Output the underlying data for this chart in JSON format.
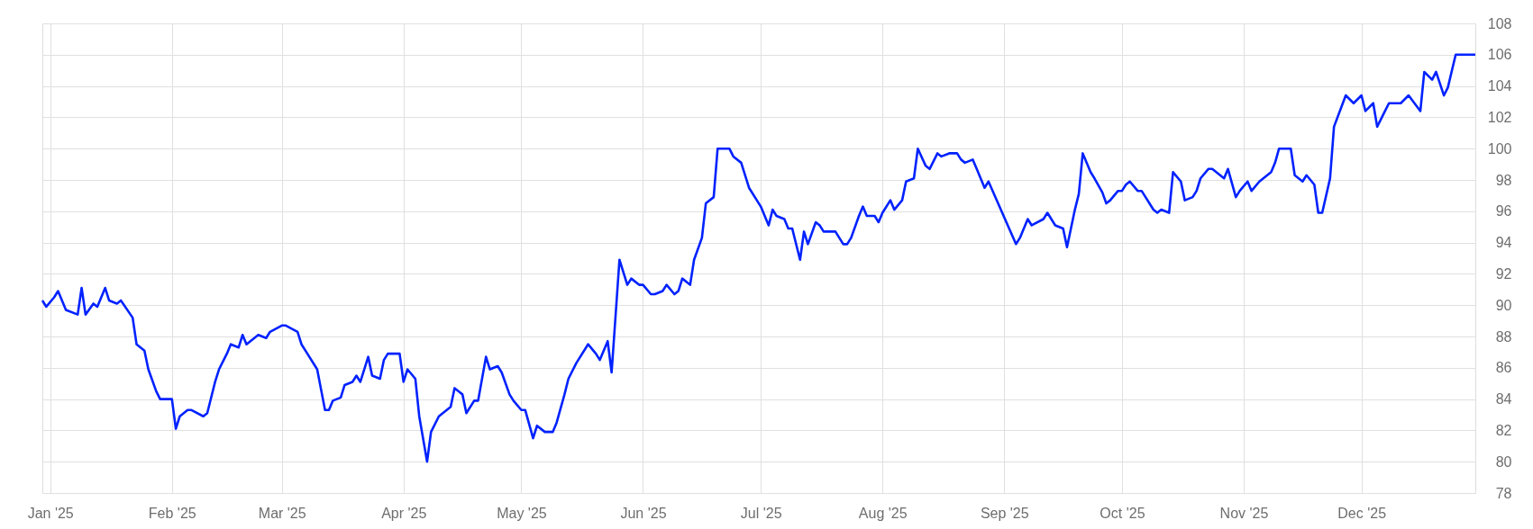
{
  "chart_data": {
    "type": "line",
    "color": "#0022ff",
    "x": [
      "2024-12-30",
      "2024-12-31",
      "2025-01-02",
      "2025-01-03",
      "2025-01-05",
      "2025-01-08",
      "2025-01-09",
      "2025-01-10",
      "2025-01-12",
      "2025-01-13",
      "2025-01-15",
      "2025-01-16",
      "2025-01-18",
      "2025-01-19",
      "2025-01-22",
      "2025-01-23",
      "2025-01-25",
      "2025-01-26",
      "2025-01-28",
      "2025-01-29",
      "2025-02-01",
      "2025-02-02",
      "2025-02-03",
      "2025-02-05",
      "2025-02-06",
      "2025-02-09",
      "2025-02-10",
      "2025-02-12",
      "2025-02-13",
      "2025-02-15",
      "2025-02-16",
      "2025-02-18",
      "2025-02-19",
      "2025-02-20",
      "2025-02-22",
      "2025-02-23",
      "2025-02-25",
      "2025-02-26",
      "2025-03-01",
      "2025-03-02",
      "2025-03-05",
      "2025-03-06",
      "2025-03-07",
      "2025-03-10",
      "2025-03-12",
      "2025-03-13",
      "2025-03-14",
      "2025-03-16",
      "2025-03-17",
      "2025-03-19",
      "2025-03-20",
      "2025-03-21",
      "2025-03-23",
      "2025-03-24",
      "2025-03-26",
      "2025-03-27",
      "2025-03-28",
      "2025-03-31",
      "2025-04-01",
      "2025-04-02",
      "2025-04-04",
      "2025-04-05",
      "2025-04-07",
      "2025-04-08",
      "2025-04-10",
      "2025-04-11",
      "2025-04-13",
      "2025-04-14",
      "2025-04-16",
      "2025-04-17",
      "2025-04-19",
      "2025-04-20",
      "2025-04-22",
      "2025-04-23",
      "2025-04-25",
      "2025-04-26",
      "2025-04-28",
      "2025-04-29",
      "2025-05-01",
      "2025-05-02",
      "2025-05-04",
      "2025-05-05",
      "2025-05-07",
      "2025-05-09",
      "2025-05-10",
      "2025-05-12",
      "2025-05-13",
      "2025-05-15",
      "2025-05-18",
      "2025-05-20",
      "2025-05-21",
      "2025-05-23",
      "2025-05-24",
      "2025-05-26",
      "2025-05-28",
      "2025-05-29",
      "2025-05-31",
      "2025-06-01",
      "2025-06-03",
      "2025-06-04",
      "2025-06-06",
      "2025-06-07",
      "2025-06-09",
      "2025-06-10",
      "2025-06-11",
      "2025-06-13",
      "2025-06-14",
      "2025-06-16",
      "2025-06-17",
      "2025-06-19",
      "2025-06-20",
      "2025-06-23",
      "2025-06-24",
      "2025-06-26",
      "2025-06-28",
      "2025-07-01",
      "2025-07-03",
      "2025-07-04",
      "2025-07-05",
      "2025-07-07",
      "2025-07-08",
      "2025-07-09",
      "2025-07-11",
      "2025-07-12",
      "2025-07-13",
      "2025-07-15",
      "2025-07-16",
      "2025-07-17",
      "2025-07-20",
      "2025-07-22",
      "2025-07-23",
      "2025-07-24",
      "2025-07-26",
      "2025-07-27",
      "2025-07-28",
      "2025-07-30",
      "2025-07-31",
      "2025-08-01",
      "2025-08-03",
      "2025-08-04",
      "2025-08-06",
      "2025-08-07",
      "2025-08-09",
      "2025-08-10",
      "2025-08-12",
      "2025-08-13",
      "2025-08-15",
      "2025-08-16",
      "2025-08-18",
      "2025-08-20",
      "2025-08-21",
      "2025-08-22",
      "2025-08-24",
      "2025-08-25",
      "2025-08-27",
      "2025-08-28",
      "2025-09-04",
      "2025-09-05",
      "2025-09-07",
      "2025-09-08",
      "2025-09-11",
      "2025-09-12",
      "2025-09-14",
      "2025-09-16",
      "2025-09-17",
      "2025-09-19",
      "2025-09-20",
      "2025-09-21",
      "2025-09-23",
      "2025-09-24",
      "2025-09-26",
      "2025-09-27",
      "2025-09-28",
      "2025-09-30",
      "2025-10-01",
      "2025-10-02",
      "2025-10-03",
      "2025-10-05",
      "2025-10-06",
      "2025-10-09",
      "2025-10-10",
      "2025-10-11",
      "2025-10-13",
      "2025-10-14",
      "2025-10-16",
      "2025-10-17",
      "2025-10-19",
      "2025-10-20",
      "2025-10-21",
      "2025-10-23",
      "2025-10-24",
      "2025-10-26",
      "2025-10-27",
      "2025-10-28",
      "2025-10-30",
      "2025-10-31",
      "2025-11-02",
      "2025-11-03",
      "2025-11-05",
      "2025-11-08",
      "2025-11-09",
      "2025-11-10",
      "2025-11-13",
      "2025-11-14",
      "2025-11-16",
      "2025-11-17",
      "2025-11-19",
      "2025-11-20",
      "2025-11-21",
      "2025-11-23",
      "2025-11-24",
      "2025-11-27",
      "2025-11-29",
      "2025-12-01",
      "2025-12-02",
      "2025-12-04",
      "2025-12-05",
      "2025-12-07",
      "2025-12-08",
      "2025-12-11",
      "2025-12-13",
      "2025-12-16",
      "2025-12-17",
      "2025-12-19",
      "2025-12-20",
      "2025-12-22",
      "2025-12-23",
      "2025-12-25",
      "2025-12-30"
    ],
    "values": [
      90.3,
      89.9,
      90.5,
      90.9,
      89.7,
      89.4,
      91.1,
      89.4,
      90.1,
      89.9,
      91.1,
      90.3,
      90.1,
      90.3,
      89.2,
      87.5,
      87.1,
      85.9,
      84.5,
      84.0,
      84.0,
      82.1,
      82.9,
      83.3,
      83.3,
      82.9,
      83.1,
      85.1,
      85.9,
      86.9,
      87.5,
      87.3,
      88.1,
      87.5,
      87.9,
      88.1,
      87.9,
      88.3,
      88.7,
      88.7,
      88.3,
      87.5,
      87.1,
      85.9,
      83.3,
      83.3,
      83.9,
      84.1,
      84.9,
      85.1,
      85.5,
      85.1,
      86.7,
      85.5,
      85.3,
      86.5,
      86.9,
      86.9,
      85.1,
      85.9,
      85.3,
      82.9,
      80.0,
      81.9,
      82.9,
      83.1,
      83.5,
      84.7,
      84.3,
      83.1,
      83.9,
      83.9,
      86.7,
      85.9,
      86.1,
      85.7,
      84.3,
      83.9,
      83.3,
      83.3,
      81.5,
      82.3,
      81.9,
      81.9,
      82.5,
      84.3,
      85.3,
      86.3,
      87.5,
      86.9,
      86.5,
      87.7,
      85.7,
      92.9,
      91.3,
      91.7,
      91.3,
      91.3,
      90.7,
      90.7,
      90.9,
      91.3,
      90.7,
      90.9,
      91.7,
      91.3,
      92.9,
      94.3,
      96.5,
      96.9,
      100.0,
      100.0,
      99.5,
      99.1,
      97.5,
      96.3,
      95.1,
      96.1,
      95.7,
      95.5,
      94.9,
      94.9,
      92.9,
      94.7,
      93.9,
      95.3,
      95.1,
      94.7,
      94.7,
      93.9,
      93.9,
      94.3,
      95.7,
      96.3,
      95.7,
      95.7,
      95.3,
      95.9,
      96.7,
      96.1,
      96.7,
      97.9,
      98.1,
      100.0,
      98.9,
      98.7,
      99.7,
      99.5,
      99.7,
      99.7,
      99.3,
      99.1,
      99.3,
      98.7,
      97.5,
      97.9,
      93.9,
      94.3,
      95.5,
      95.1,
      95.5,
      95.9,
      95.1,
      94.9,
      93.7,
      96.1,
      97.1,
      99.7,
      98.5,
      98.1,
      97.2,
      96.5,
      96.7,
      97.3,
      97.3,
      97.7,
      97.9,
      97.3,
      97.3,
      96.1,
      95.9,
      96.1,
      95.9,
      98.5,
      97.9,
      96.7,
      96.9,
      97.3,
      98.1,
      98.7,
      98.7,
      98.3,
      98.1,
      98.7,
      96.9,
      97.3,
      97.9,
      97.3,
      97.9,
      98.5,
      99.1,
      100.0,
      100.0,
      98.3,
      97.9,
      98.3,
      97.7,
      95.9,
      95.9,
      98.1,
      101.4,
      103.4,
      102.9,
      103.4,
      102.4,
      102.9,
      101.4,
      102.4,
      102.9,
      102.9,
      103.4,
      102.4,
      104.9,
      104.4,
      104.9,
      103.4,
      103.9,
      106.0,
      106.0
    ],
    "xlim": [
      "2024-12-30",
      "2025-12-30"
    ],
    "xticks": [
      {
        "value": "2025-01-01",
        "label": "Jan '25"
      },
      {
        "value": "2025-02-01",
        "label": "Feb '25"
      },
      {
        "value": "2025-03-01",
        "label": "Mar '25"
      },
      {
        "value": "2025-04-01",
        "label": "Apr '25"
      },
      {
        "value": "2025-05-01",
        "label": "May '25"
      },
      {
        "value": "2025-06-01",
        "label": "Jun '25"
      },
      {
        "value": "2025-07-01",
        "label": "Jul '25"
      },
      {
        "value": "2025-08-01",
        "label": "Aug '25"
      },
      {
        "value": "2025-09-01",
        "label": "Sep '25"
      },
      {
        "value": "2025-10-01",
        "label": "Oct '25"
      },
      {
        "value": "2025-11-01",
        "label": "Nov '25"
      },
      {
        "value": "2025-12-01",
        "label": "Dec '25"
      }
    ],
    "ylim": [
      78,
      108
    ],
    "yticks": [
      78,
      80,
      82,
      84,
      86,
      88,
      90,
      92,
      94,
      96,
      98,
      100,
      102,
      104,
      106,
      108
    ],
    "grid": true,
    "line_style": "solid",
    "marker": "none"
  }
}
